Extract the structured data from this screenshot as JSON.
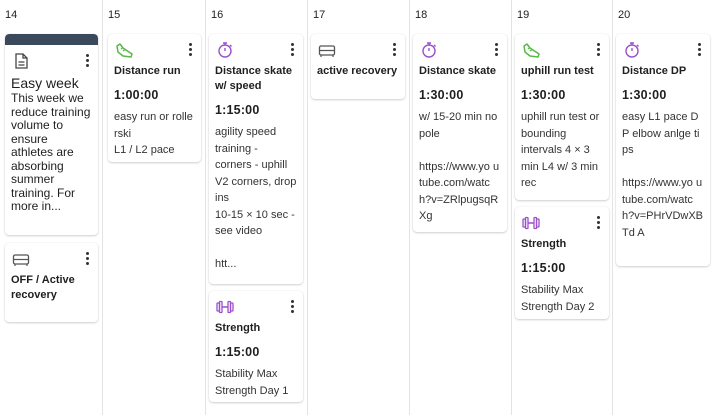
{
  "days": [
    {
      "num": "14"
    },
    {
      "num": "15"
    },
    {
      "num": "16"
    },
    {
      "num": "17"
    },
    {
      "num": "18"
    },
    {
      "num": "19"
    },
    {
      "num": "20"
    }
  ],
  "cards": {
    "note": {
      "icon": "note-icon",
      "title": "Easy week",
      "body": "This week we reduce training volume to ensure athletes are absorbing summer training. For more in..."
    },
    "off_recovery": {
      "icon": "couch-icon",
      "title": "OFF / Active recovery"
    },
    "distance_run": {
      "icon": "shoe-icon",
      "title": "Distance run",
      "duration": "1:00:00",
      "desc": "easy run or rollerski\nL1 / L2 pace"
    },
    "distance_skate_speed": {
      "icon": "stopwatch-icon",
      "title": "Distance skate w/ speed",
      "duration": "1:15:00",
      "desc": "agility speed training - corners - uphill V2 corners, drop ins\n10-15 × 10 sec - see video\n\nhtt..."
    },
    "strength_16": {
      "icon": "dumbbell-icon",
      "title": "Strength",
      "duration": "1:15:00",
      "desc": "Stability Max Strength Day 1"
    },
    "active_recovery": {
      "icon": "couch-icon",
      "title": "active recovery"
    },
    "distance_skate": {
      "icon": "stopwatch-icon",
      "title": "Distance skate",
      "duration": "1:30:00",
      "desc": "w/ 15-20 min no pole\n\nhttps://www.yo utube.com/watc h?v=ZRlpugsqRXg"
    },
    "uphill_run_test": {
      "icon": "shoe-icon",
      "title": "uphill run test",
      "duration": "1:30:00",
      "desc": "uphill run test or bounding intervals 4 × 3 min L4 w/ 3 min rec"
    },
    "strength_19": {
      "icon": "dumbbell-icon",
      "title": "Strength",
      "duration": "1:15:00",
      "desc": "Stability Max Strength Day 2"
    },
    "distance_dp": {
      "icon": "stopwatch-icon",
      "title": "Distance DP",
      "duration": "1:30:00",
      "desc": "easy L1 pace DP elbow anlge tips\n\nhttps://www.yo utube.com/watc h?v=PHrVDwXBTd A"
    }
  },
  "colors": {
    "run": "#5ab84a",
    "skate": "#9b4fc9",
    "strength": "#9b4fc9",
    "recovery": "#555555",
    "note_bar": "#3a4a5c"
  }
}
